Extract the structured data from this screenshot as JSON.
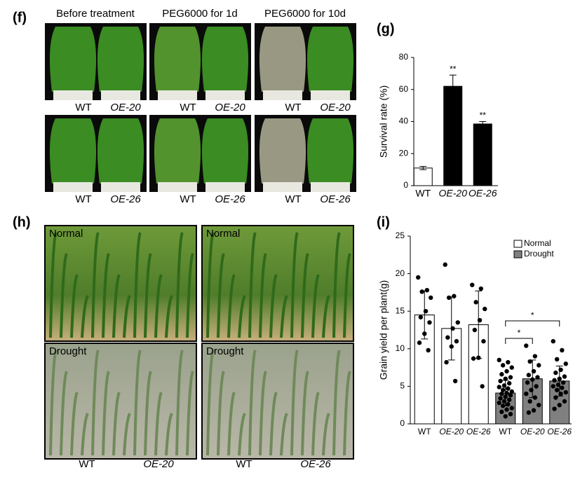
{
  "panels": {
    "f": {
      "label": "(f)",
      "headers": [
        "Before treatment",
        "PEG6000  for 1d",
        "PEG6000  for 10d"
      ],
      "rows": [
        [
          [
            "WT",
            "OE-20"
          ],
          [
            "WT",
            "OE-20"
          ],
          [
            "WT",
            "OE-20"
          ]
        ],
        [
          [
            "WT",
            "OE-26"
          ],
          [
            "WT",
            "OE-26"
          ],
          [
            "WT",
            "OE-26"
          ]
        ]
      ]
    },
    "g": {
      "label": "(g)"
    },
    "h": {
      "label": "(h)",
      "photos": [
        [
          "Normal",
          "Normal"
        ],
        [
          "Drought",
          "Drought"
        ]
      ],
      "columns": [
        [
          "WT",
          "OE-20"
        ],
        [
          "WT",
          "OE-26"
        ]
      ]
    },
    "i": {
      "label": "(i)"
    }
  },
  "chart_data": [
    {
      "type": "bar",
      "y_label": "Survival rate (%)",
      "categories": [
        "WT",
        "OE-20",
        "OE-26"
      ],
      "series": [
        {
          "colors": [
            "#ffffff",
            "#000000",
            "#000000"
          ],
          "values": [
            11,
            62,
            38.5
          ],
          "errors": [
            1,
            7,
            1.5
          ]
        }
      ],
      "ylim": [
        0,
        80
      ],
      "yticks": [
        0,
        20,
        40,
        60,
        80
      ],
      "annotations": [
        {
          "category": 1,
          "label": "**"
        },
        {
          "category": 2,
          "label": "**"
        }
      ]
    },
    {
      "type": "bar",
      "y_label": "Grain yield per plant(g)",
      "categories": [
        "WT",
        "OE-20",
        "OE-26",
        "WT",
        "OE-20",
        "OE-26"
      ],
      "series": [
        {
          "name": "Normal",
          "color": "#ffffff",
          "values": [
            14.5,
            12.7,
            13.2,
            null,
            null,
            null
          ],
          "errors": [
            3.2,
            4.2,
            4.5,
            null,
            null,
            null
          ],
          "points": [
            [
              19.5,
              17.8,
              17.6,
              16.8,
              15,
              14.2,
              13.5,
              12,
              10.8,
              9.8
            ],
            [
              21.2,
              17,
              16.8,
              13.5,
              12.7,
              11.5,
              11,
              10.3,
              8.2,
              5.7
            ],
            [
              18.5,
              18,
              16.2,
              15.3,
              13.8,
              12.5,
              11,
              8.8,
              8.7,
              5
            ],
            [],
            [],
            []
          ]
        },
        {
          "name": "Drought",
          "color": "#808080",
          "values": [
            null,
            null,
            null,
            4.1,
            6.0,
            5.7
          ],
          "errors": [
            null,
            null,
            null,
            1.7,
            2.5,
            2.0
          ],
          "points": [
            [],
            [],
            [],
            [
              8.5,
              8.2,
              7.8,
              7.5,
              7,
              6.6,
              6.2,
              6,
              5.7,
              5.4,
              5.1,
              4.9,
              4.7,
              4.5,
              4.3,
              4.1,
              4,
              3.8,
              3.6,
              3.4,
              3.2,
              3,
              2.8,
              2.6,
              2.4,
              2.1,
              1.9,
              1.6,
              1.3,
              1
            ],
            [
              10.4,
              9,
              8.3,
              7.8,
              7,
              6.5,
              6.2,
              5.9,
              5.5,
              5,
              4.5,
              4,
              3.5,
              3,
              2.5,
              1.8,
              1.5
            ],
            [
              11,
              9.8,
              8.6,
              8,
              7.2,
              6.8,
              6.3,
              6,
              5.8,
              5.5,
              5.2,
              5,
              4.8,
              4.5,
              4.2,
              4,
              3.5,
              3,
              2.5,
              2
            ]
          ]
        }
      ],
      "ylim": [
        0,
        25
      ],
      "yticks": [
        0,
        5,
        10,
        15,
        20,
        25
      ],
      "legend": "upper right",
      "comparisons": [
        {
          "groups": [
            3,
            4
          ],
          "label": "*"
        },
        {
          "groups": [
            3,
            5
          ],
          "label": "*"
        }
      ]
    }
  ]
}
